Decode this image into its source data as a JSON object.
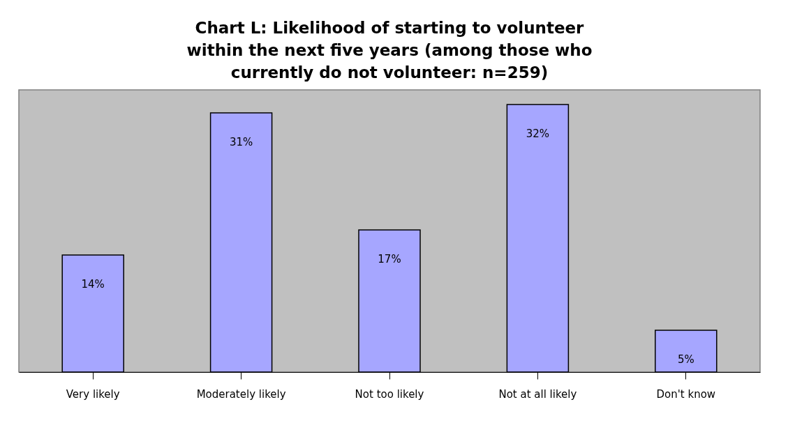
{
  "chart_data": {
    "type": "bar",
    "title": "Chart L: Likelihood of starting to volunteer within the next five years (among those who currently do not volunteer: n=259)",
    "categories": [
      "Very likely",
      "Moderately likely",
      "Not too likely",
      "Not at all likely",
      "Don't know"
    ],
    "values": [
      14,
      31,
      17,
      32,
      5
    ],
    "value_labels": [
      "14%",
      "31%",
      "17%",
      "32%",
      "5%"
    ],
    "color": "#a6a6ff",
    "tick_labels": "x"
  }
}
